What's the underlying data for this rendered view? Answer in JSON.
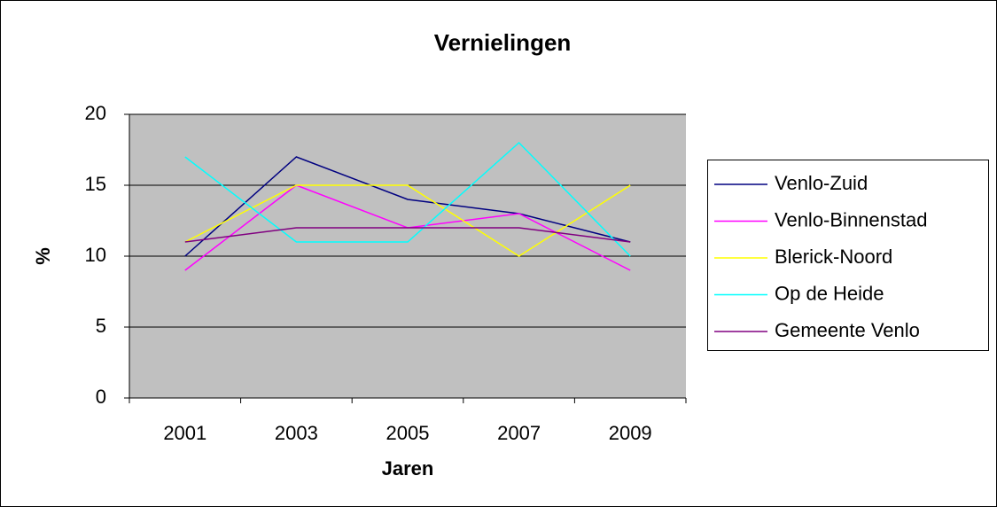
{
  "chart_data": {
    "type": "line",
    "title": "Vernielingen",
    "x_label": "Jaren",
    "y_label": "%",
    "categories": [
      "2001",
      "2003",
      "2005",
      "2007",
      "2009"
    ],
    "series": [
      {
        "name": "Venlo-Zuid",
        "color": "#000080",
        "values": [
          10,
          17,
          14,
          13,
          11
        ]
      },
      {
        "name": "Venlo-Binnenstad",
        "color": "#ff00ff",
        "values": [
          9,
          15,
          12,
          13,
          9
        ]
      },
      {
        "name": "Blerick-Noord",
        "color": "#ffff00",
        "values": [
          11,
          15,
          15,
          10,
          15
        ]
      },
      {
        "name": "Op de Heide",
        "color": "#00ffff",
        "values": [
          17,
          11,
          11,
          18,
          10
        ]
      },
      {
        "name": "Gemeente Venlo",
        "color": "#800080",
        "values": [
          11,
          12,
          12,
          12,
          11
        ]
      }
    ],
    "ylim": [
      0,
      20
    ],
    "yticks": [
      0,
      5,
      10,
      15,
      20
    ],
    "grid": true,
    "legend": "right"
  }
}
